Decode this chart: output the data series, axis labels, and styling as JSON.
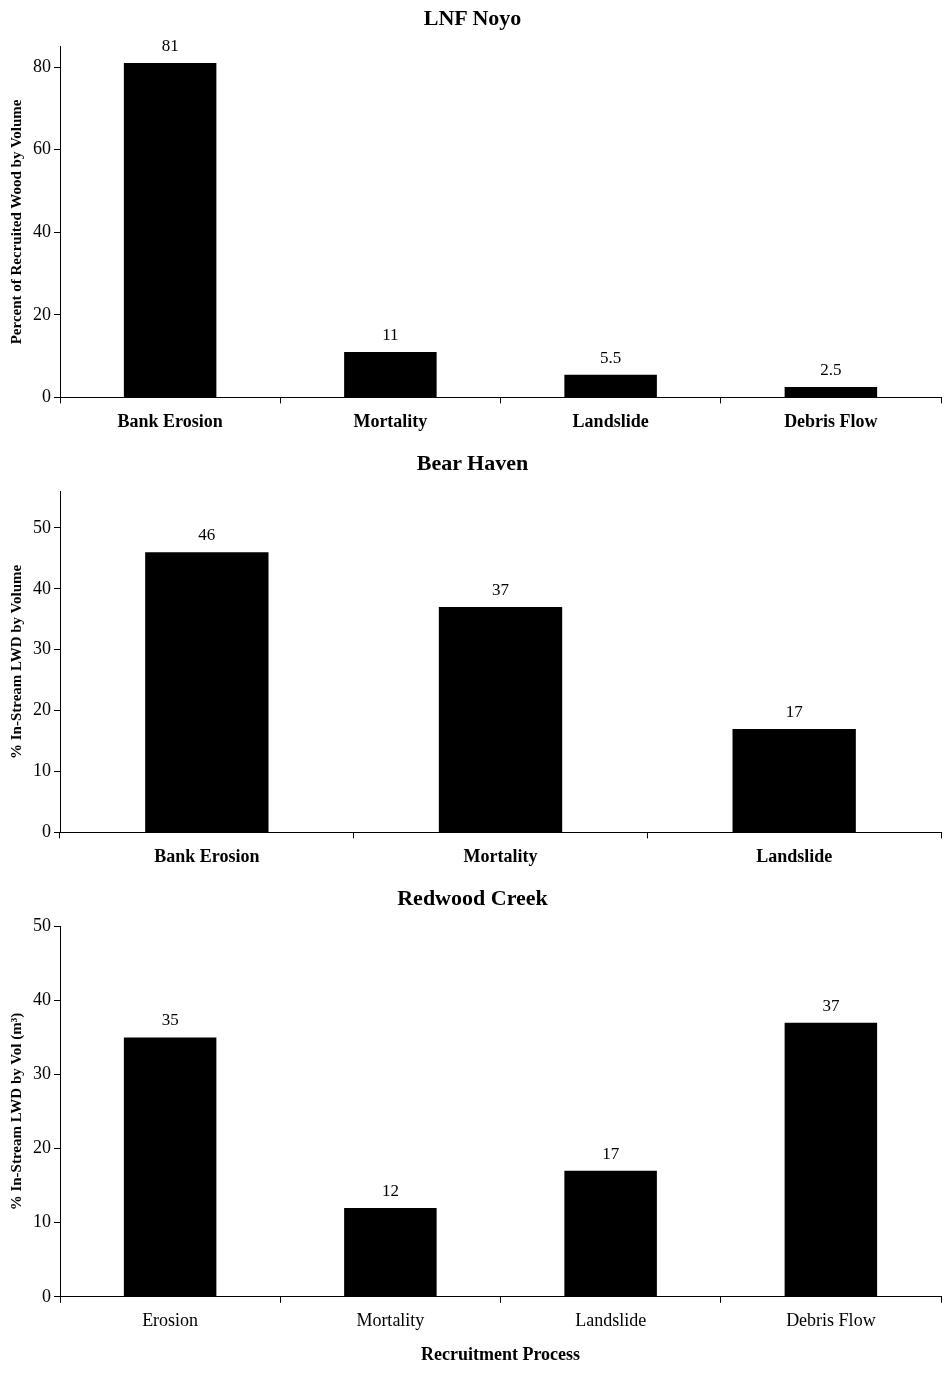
{
  "chart_data": [
    {
      "type": "bar",
      "title": "LNF Noyo",
      "ylabel": "Percent of Recruited Wood by Volume",
      "categories": [
        "Bank Erosion",
        "Mortality",
        "Landslide",
        "Debris Flow"
      ],
      "values": [
        81,
        11,
        5.5,
        2.5
      ],
      "color": "#000000",
      "ylim": [
        0,
        85
      ],
      "yticks": [
        0,
        20,
        40,
        60,
        80
      ],
      "data_labels": true,
      "grid": false,
      "legend": false
    },
    {
      "type": "bar",
      "title": "Bear Haven",
      "ylabel": "% In-Stream LWD by Volume",
      "categories": [
        "Bank Erosion",
        "Mortality",
        "Landslide"
      ],
      "values": [
        46,
        37,
        17
      ],
      "color": "#000000",
      "ylim": [
        0,
        56
      ],
      "yticks": [
        0,
        10,
        20,
        30,
        40,
        50
      ],
      "data_labels": true,
      "grid": false,
      "legend": false
    },
    {
      "type": "bar",
      "title": "Redwood Creek",
      "xlabel": "Recruitment Process",
      "ylabel": "% In-Stream LWD by Vol (m³)",
      "categories": [
        "Erosion",
        "Mortality",
        "Landslide",
        "Debris Flow"
      ],
      "values": [
        35,
        12,
        17,
        37
      ],
      "color": "#000000",
      "ylim": [
        0,
        50
      ],
      "yticks": [
        0,
        10,
        20,
        30,
        40,
        50
      ],
      "data_labels": true,
      "grid": false,
      "legend": false
    }
  ]
}
